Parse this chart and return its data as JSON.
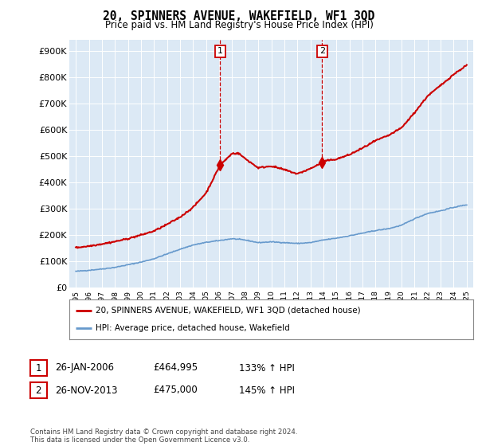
{
  "title": "20, SPINNERS AVENUE, WAKEFIELD, WF1 3QD",
  "subtitle": "Price paid vs. HM Land Registry's House Price Index (HPI)",
  "yticks": [
    0,
    100000,
    200000,
    300000,
    400000,
    500000,
    600000,
    700000,
    800000,
    900000
  ],
  "ytick_labels": [
    "£0",
    "£100K",
    "£200K",
    "£300K",
    "£400K",
    "£500K",
    "£600K",
    "£700K",
    "£800K",
    "£900K"
  ],
  "ylim": [
    0,
    940000
  ],
  "xlim_min": 1994.5,
  "xlim_max": 2025.5,
  "sale1_date": 2006.07,
  "sale1_price": 464995,
  "sale1_label": "1",
  "sale2_date": 2013.9,
  "sale2_price": 475000,
  "sale2_label": "2",
  "hpi_color": "#6699cc",
  "price_color": "#cc0000",
  "sale_marker_color": "#cc0000",
  "annotation_box_color": "#cc0000",
  "plot_bg_color": "#dce9f5",
  "grid_color": "#ffffff",
  "legend_label_price": "20, SPINNERS AVENUE, WAKEFIELD, WF1 3QD (detached house)",
  "legend_label_hpi": "HPI: Average price, detached house, Wakefield",
  "note1_label": "1",
  "note1_date": "26-JAN-2006",
  "note1_price": "£464,995",
  "note1_hpi": "133% ↑ HPI",
  "note2_label": "2",
  "note2_date": "26-NOV-2013",
  "note2_price": "£475,000",
  "note2_hpi": "145% ↑ HPI",
  "footer": "Contains HM Land Registry data © Crown copyright and database right 2024.\nThis data is licensed under the Open Government Licence v3.0."
}
